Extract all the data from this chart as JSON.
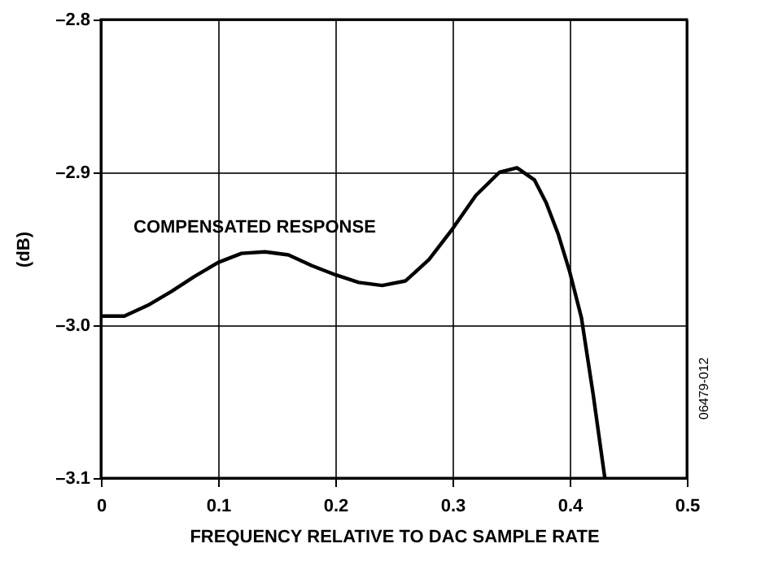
{
  "chart_data": {
    "type": "line",
    "xlabel": "FREQUENCY RELATIVE TO DAC SAMPLE RATE",
    "ylabel": "(dB)",
    "x": [
      0,
      0.02,
      0.04,
      0.06,
      0.08,
      0.1,
      0.12,
      0.14,
      0.16,
      0.18,
      0.2,
      0.22,
      0.24,
      0.26,
      0.28,
      0.3,
      0.32,
      0.34,
      0.355,
      0.37,
      0.38,
      0.39,
      0.4,
      0.41,
      0.42,
      0.43
    ],
    "series": [
      {
        "color": "#000000",
        "values": [
          -2.994,
          -2.994,
          -2.987,
          -2.978,
          -2.968,
          -2.959,
          -2.953,
          -2.952,
          -2.954,
          -2.961,
          -2.967,
          -2.972,
          -2.974,
          -2.971,
          -2.957,
          -2.937,
          -2.915,
          -2.9,
          -2.897,
          -2.905,
          -2.92,
          -2.94,
          -2.965,
          -2.995,
          -3.045,
          -3.1
        ]
      }
    ],
    "xlim": [
      0,
      0.5
    ],
    "xticks": [
      0,
      0.1,
      0.2,
      0.3,
      0.4,
      0.5
    ],
    "ylim": [
      -3.1,
      -2.8
    ],
    "yticks": [
      {
        "value": -3.1,
        "label": "–3.1"
      },
      {
        "value": -3.0,
        "label": "–3.0"
      },
      {
        "value": -2.9,
        "label": "–2.9"
      },
      {
        "value": -2.8,
        "label": "–2.8"
      }
    ],
    "grid": true,
    "marker": "none",
    "line_style": "solid",
    "annotations": [
      "COMPENSATED RESPONSE",
      "06479-012"
    ]
  }
}
